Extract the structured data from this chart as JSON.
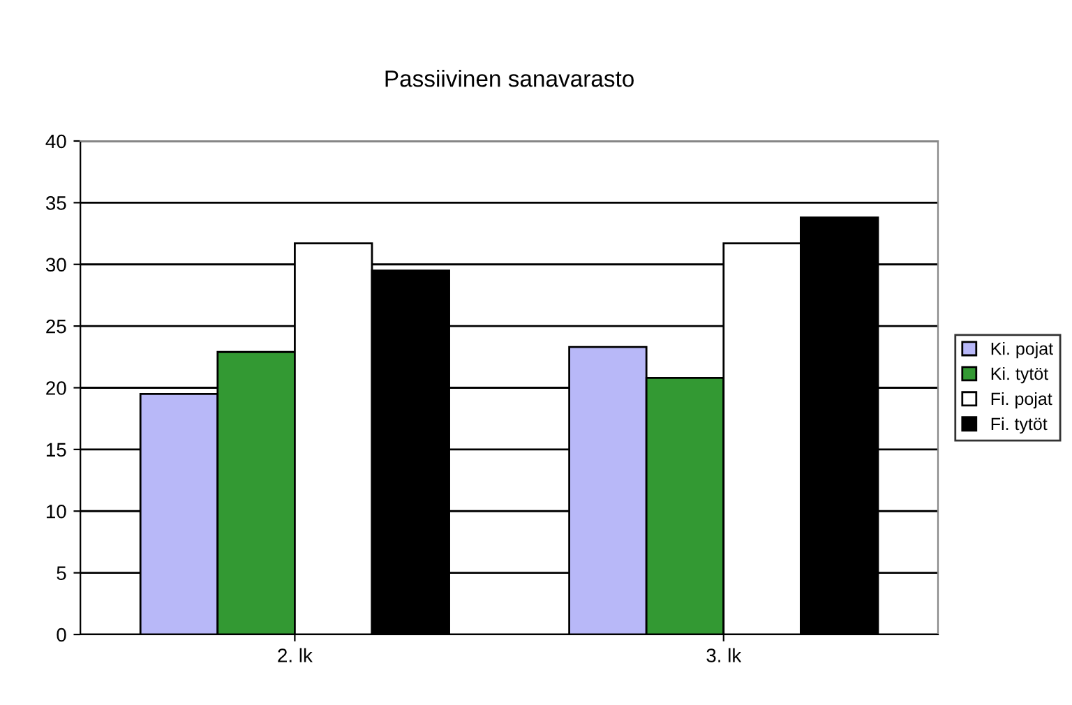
{
  "chart_data": {
    "type": "bar",
    "title": "Passiivinen sanavarasto",
    "categories": [
      "2. lk",
      "3. lk"
    ],
    "series": [
      {
        "name": "Ki. pojat",
        "color": "#b8b8f8",
        "values": [
          19.5,
          23.3
        ]
      },
      {
        "name": "Ki. tytöt",
        "color": "#339933",
        "values": [
          22.9,
          20.8
        ]
      },
      {
        "name": "Fi. pojat",
        "color": "#ffffff",
        "values": [
          31.7,
          31.7
        ]
      },
      {
        "name": "Fi. tytöt",
        "color": "#000000",
        "values": [
          29.5,
          33.8
        ]
      }
    ],
    "ylim": [
      0,
      40
    ],
    "yticks": [
      0,
      5,
      10,
      15,
      20,
      25,
      30,
      35,
      40
    ],
    "grid": "y",
    "legend": "right"
  }
}
